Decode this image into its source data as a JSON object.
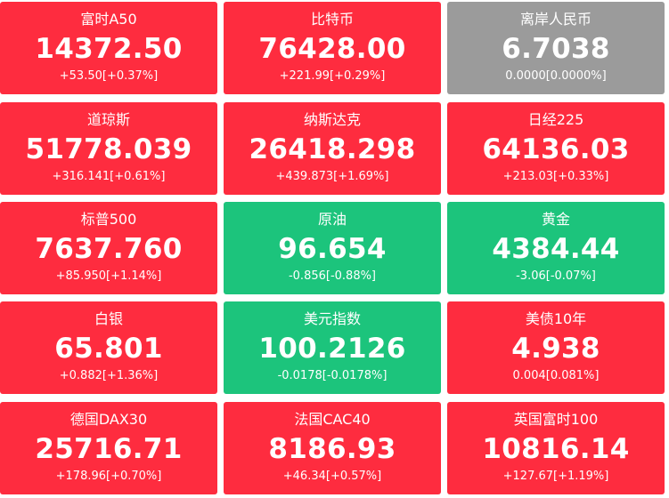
{
  "tiles": [
    {
      "name": "富时A50",
      "price": "14372.50",
      "change": "+53.50[+0.37%]",
      "trend": "up"
    },
    {
      "name": "比特币",
      "price": "76428.00",
      "change": "+221.99[+0.29%]",
      "trend": "up"
    },
    {
      "name": "离岸人民币",
      "price": "6.7038",
      "change": "0.0000[0.0000%]",
      "trend": "flat"
    },
    {
      "name": "道琼斯",
      "price": "51778.039",
      "change": "+316.141[+0.61%]",
      "trend": "up"
    },
    {
      "name": "纳斯达克",
      "price": "26418.298",
      "change": "+439.873[+1.69%]",
      "trend": "up"
    },
    {
      "name": "日经225",
      "price": "64136.03",
      "change": "+213.03[+0.33%]",
      "trend": "up"
    },
    {
      "name": "标普500",
      "price": "7637.760",
      "change": "+85.950[+1.14%]",
      "trend": "up"
    },
    {
      "name": "原油",
      "price": "96.654",
      "change": "-0.856[-0.88%]",
      "trend": "down"
    },
    {
      "name": "黄金",
      "price": "4384.44",
      "change": "-3.06[-0.07%]",
      "trend": "down"
    },
    {
      "name": "白银",
      "price": "65.801",
      "change": "+0.882[+1.36%]",
      "trend": "up"
    },
    {
      "name": "美元指数",
      "price": "100.2126",
      "change": "-0.0178[-0.0178%]",
      "trend": "down"
    },
    {
      "name": "美债10年",
      "price": "4.938",
      "change": "0.004[0.081%]",
      "trend": "up"
    },
    {
      "name": "德国DAX30",
      "price": "25716.71",
      "change": "+178.96[+0.70%]",
      "trend": "up"
    },
    {
      "name": "法国CAC40",
      "price": "8186.93",
      "change": "+46.34[+0.57%]",
      "trend": "up"
    },
    {
      "name": "英国富时100",
      "price": "10816.14",
      "change": "+127.67[+1.19%]",
      "trend": "up"
    }
  ],
  "colors": {
    "up": "#fe2c3f",
    "down": "#1cc47c",
    "flat": "#9b9b9b",
    "text": "#ffffff"
  }
}
